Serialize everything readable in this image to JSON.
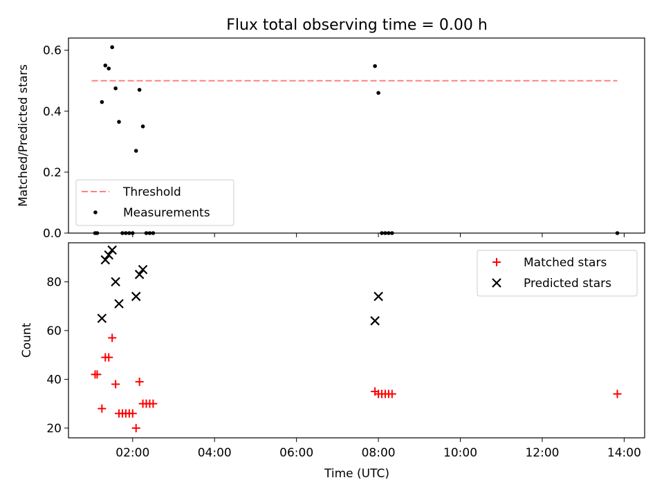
{
  "figure_title": "Flux total observing time = 0.00 h",
  "colors": {
    "threshold": "#ff7f7f",
    "measurements": "#000000",
    "matched": "#ff0000",
    "predicted": "#000000"
  },
  "chart_data": [
    {
      "type": "scatter",
      "title": "Flux total observing time = 0.00 h",
      "xlabel": "",
      "ylabel": "Matched/Predicted stars",
      "xlim": [
        "00:26",
        "14:30"
      ],
      "ylim": [
        0,
        0.64
      ],
      "yticks": [
        0.0,
        0.2,
        0.4,
        0.6
      ],
      "ytick_labels": [
        "0.0",
        "0.2",
        "0.4",
        "0.6"
      ],
      "grid": false,
      "legend_position": "lower-left",
      "threshold": {
        "name": "Threshold",
        "value": 0.5,
        "x_range": [
          "01:00",
          "13:50"
        ],
        "style": "dashed"
      },
      "series": [
        {
          "name": "Measurements",
          "marker": "dot",
          "points": [
            {
              "x": "01:05",
              "y": 0.0
            },
            {
              "x": "01:08",
              "y": 0.0
            },
            {
              "x": "01:15",
              "y": 0.43
            },
            {
              "x": "01:20",
              "y": 0.55
            },
            {
              "x": "01:25",
              "y": 0.54
            },
            {
              "x": "01:30",
              "y": 0.61
            },
            {
              "x": "01:35",
              "y": 0.475
            },
            {
              "x": "01:40",
              "y": 0.365
            },
            {
              "x": "01:45",
              "y": 0.0
            },
            {
              "x": "01:50",
              "y": 0.0
            },
            {
              "x": "01:55",
              "y": 0.0
            },
            {
              "x": "02:00",
              "y": 0.0
            },
            {
              "x": "02:05",
              "y": 0.27
            },
            {
              "x": "02:10",
              "y": 0.47
            },
            {
              "x": "02:15",
              "y": 0.35
            },
            {
              "x": "02:20",
              "y": 0.0
            },
            {
              "x": "02:25",
              "y": 0.0
            },
            {
              "x": "02:30",
              "y": 0.0
            },
            {
              "x": "07:55",
              "y": 0.548
            },
            {
              "x": "08:00",
              "y": 0.46
            },
            {
              "x": "08:05",
              "y": 0.0
            },
            {
              "x": "08:10",
              "y": 0.0
            },
            {
              "x": "08:15",
              "y": 0.0
            },
            {
              "x": "08:20",
              "y": 0.0
            },
            {
              "x": "13:50",
              "y": 0.0
            }
          ]
        }
      ]
    },
    {
      "type": "scatter",
      "title": "",
      "xlabel": "Time (UTC)",
      "ylabel": "Count",
      "xlim": [
        "00:26",
        "14:30"
      ],
      "ylim": [
        16,
        96
      ],
      "xticks": [
        "02:00",
        "04:00",
        "06:00",
        "08:00",
        "10:00",
        "12:00",
        "14:00"
      ],
      "yticks": [
        20,
        40,
        60,
        80
      ],
      "ytick_labels": [
        "20",
        "40",
        "60",
        "80"
      ],
      "grid": false,
      "legend_position": "upper-right",
      "series": [
        {
          "name": "Matched stars",
          "marker": "plus",
          "points": [
            {
              "x": "01:05",
              "y": 42
            },
            {
              "x": "01:08",
              "y": 42
            },
            {
              "x": "01:15",
              "y": 28
            },
            {
              "x": "01:20",
              "y": 49
            },
            {
              "x": "01:25",
              "y": 49
            },
            {
              "x": "01:30",
              "y": 57
            },
            {
              "x": "01:35",
              "y": 38
            },
            {
              "x": "01:40",
              "y": 26
            },
            {
              "x": "01:45",
              "y": 26
            },
            {
              "x": "01:50",
              "y": 26
            },
            {
              "x": "01:55",
              "y": 26
            },
            {
              "x": "02:00",
              "y": 26
            },
            {
              "x": "02:05",
              "y": 20
            },
            {
              "x": "02:10",
              "y": 39
            },
            {
              "x": "02:15",
              "y": 30
            },
            {
              "x": "02:20",
              "y": 30
            },
            {
              "x": "02:25",
              "y": 30
            },
            {
              "x": "02:30",
              "y": 30
            },
            {
              "x": "07:55",
              "y": 35
            },
            {
              "x": "08:00",
              "y": 34
            },
            {
              "x": "08:05",
              "y": 34
            },
            {
              "x": "08:10",
              "y": 34
            },
            {
              "x": "08:15",
              "y": 34
            },
            {
              "x": "08:20",
              "y": 34
            },
            {
              "x": "13:50",
              "y": 34
            }
          ]
        },
        {
          "name": "Predicted stars",
          "marker": "x",
          "points": [
            {
              "x": "01:15",
              "y": 65
            },
            {
              "x": "01:20",
              "y": 89
            },
            {
              "x": "01:25",
              "y": 91
            },
            {
              "x": "01:30",
              "y": 93
            },
            {
              "x": "01:35",
              "y": 80
            },
            {
              "x": "01:40",
              "y": 71
            },
            {
              "x": "02:05",
              "y": 74
            },
            {
              "x": "02:10",
              "y": 83
            },
            {
              "x": "02:15",
              "y": 85
            },
            {
              "x": "07:55",
              "y": 64
            },
            {
              "x": "08:00",
              "y": 74
            }
          ]
        }
      ]
    }
  ]
}
